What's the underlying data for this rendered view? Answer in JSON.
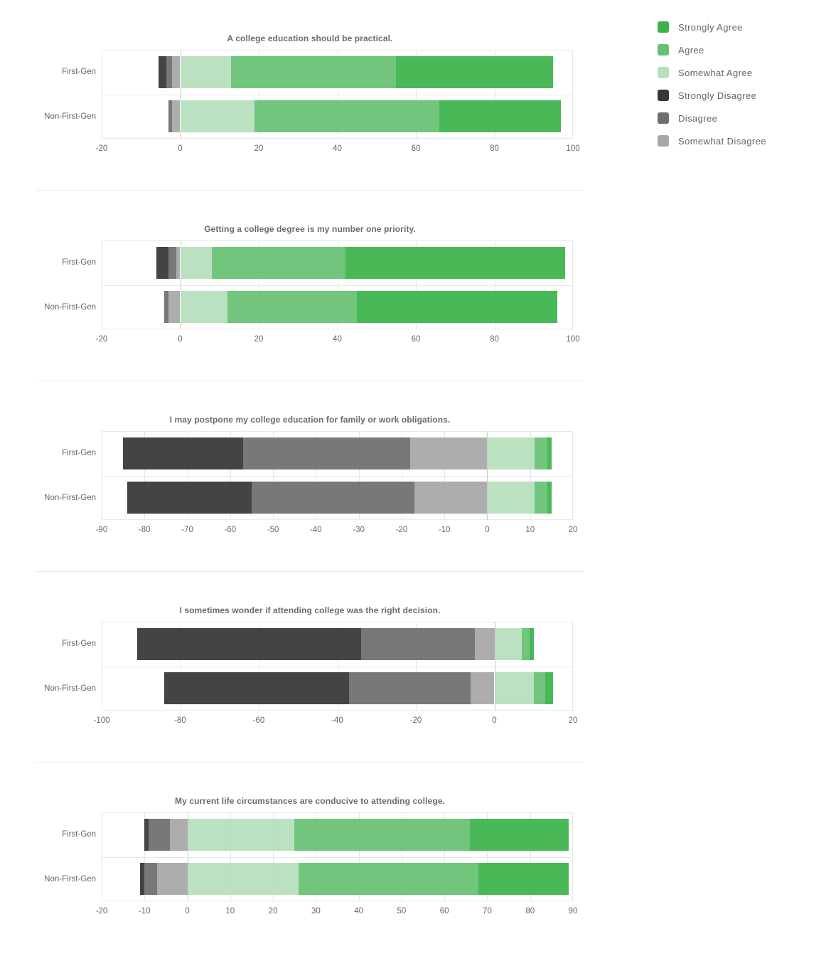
{
  "legend": {
    "position": "top-right",
    "items": [
      {
        "label": "Strongly Agree",
        "color": "#3bb34a"
      },
      {
        "label": "Agree",
        "color": "#66c173"
      },
      {
        "label": "Somewhat Agree",
        "color": "#b6dfbc"
      },
      {
        "label": "Strongly Disagree",
        "color": "#363636"
      },
      {
        "label": "Disagree",
        "color": "#6e6e6e"
      },
      {
        "label": "Somewhat Disagree",
        "color": "#a7a7a7"
      }
    ]
  },
  "chart_data": [
    {
      "type": "bar",
      "orientation": "horizontal",
      "stacked": true,
      "diverging": true,
      "grid": true,
      "title": "A college education should be practical.",
      "categories": [
        "First-Gen",
        "Non-First-Gen"
      ],
      "xlim": [
        -20,
        100
      ],
      "tick_step": 20,
      "series": [
        {
          "name": "Strongly Disagree",
          "values": [
            -2,
            0
          ]
        },
        {
          "name": "Disagree",
          "values": [
            -1.5,
            -1
          ]
        },
        {
          "name": "Somewhat Disagree",
          "values": [
            -2,
            -2
          ]
        },
        {
          "name": "Somewhat Agree",
          "values": [
            13,
            19
          ]
        },
        {
          "name": "Agree",
          "values": [
            42,
            47
          ]
        },
        {
          "name": "Strongly Agree",
          "values": [
            40,
            31
          ]
        }
      ]
    },
    {
      "type": "bar",
      "orientation": "horizontal",
      "stacked": true,
      "diverging": true,
      "grid": true,
      "title": "Getting a college degree is my number one priority.",
      "categories": [
        "First-Gen",
        "Non-First-Gen"
      ],
      "xlim": [
        -20,
        100
      ],
      "tick_step": 20,
      "series": [
        {
          "name": "Strongly Disagree",
          "values": [
            -3,
            0
          ]
        },
        {
          "name": "Disagree",
          "values": [
            -2,
            -1
          ]
        },
        {
          "name": "Somewhat Disagree",
          "values": [
            -1,
            -3
          ]
        },
        {
          "name": "Somewhat Agree",
          "values": [
            8,
            12
          ]
        },
        {
          "name": "Agree",
          "values": [
            34,
            33
          ]
        },
        {
          "name": "Strongly Agree",
          "values": [
            56,
            51
          ]
        }
      ]
    },
    {
      "type": "bar",
      "orientation": "horizontal",
      "stacked": true,
      "diverging": true,
      "grid": true,
      "title": "I may postpone my college education for family or work obligations.",
      "categories": [
        "First-Gen",
        "Non-First-Gen"
      ],
      "xlim": [
        -90,
        20
      ],
      "tick_step": 10,
      "series": [
        {
          "name": "Strongly Disagree",
          "values": [
            -28,
            -29
          ]
        },
        {
          "name": "Disagree",
          "values": [
            -39,
            -38
          ]
        },
        {
          "name": "Somewhat Disagree",
          "values": [
            -18,
            -17
          ]
        },
        {
          "name": "Somewhat Agree",
          "values": [
            11,
            11
          ]
        },
        {
          "name": "Agree",
          "values": [
            3,
            3
          ]
        },
        {
          "name": "Strongly Agree",
          "values": [
            1,
            1
          ]
        }
      ]
    },
    {
      "type": "bar",
      "orientation": "horizontal",
      "stacked": true,
      "diverging": true,
      "grid": true,
      "title": "I sometimes wonder if attending college was the right decision.",
      "categories": [
        "First-Gen",
        "Non-First-Gen"
      ],
      "xlim": [
        -100,
        20
      ],
      "tick_step": 20,
      "series": [
        {
          "name": "Strongly Disagree",
          "values": [
            -57,
            -47
          ]
        },
        {
          "name": "Disagree",
          "values": [
            -29,
            -31
          ]
        },
        {
          "name": "Somewhat Disagree",
          "values": [
            -5,
            -6
          ]
        },
        {
          "name": "Somewhat Agree",
          "values": [
            7,
            10
          ]
        },
        {
          "name": "Agree",
          "values": [
            2,
            3
          ]
        },
        {
          "name": "Strongly Agree",
          "values": [
            1,
            2
          ]
        }
      ]
    },
    {
      "type": "bar",
      "orientation": "horizontal",
      "stacked": true,
      "diverging": true,
      "grid": true,
      "title": "My current life circumstances are conducive to attending college.",
      "categories": [
        "First-Gen",
        "Non-First-Gen"
      ],
      "xlim": [
        -20,
        90
      ],
      "tick_step": 10,
      "series": [
        {
          "name": "Strongly Disagree",
          "values": [
            -1,
            -1
          ]
        },
        {
          "name": "Disagree",
          "values": [
            -5,
            -3
          ]
        },
        {
          "name": "Somewhat Disagree",
          "values": [
            -4,
            -7
          ]
        },
        {
          "name": "Somewhat Agree",
          "values": [
            25,
            26
          ]
        },
        {
          "name": "Agree",
          "values": [
            41,
            42
          ]
        },
        {
          "name": "Strongly Agree",
          "values": [
            23,
            21
          ]
        }
      ]
    }
  ]
}
